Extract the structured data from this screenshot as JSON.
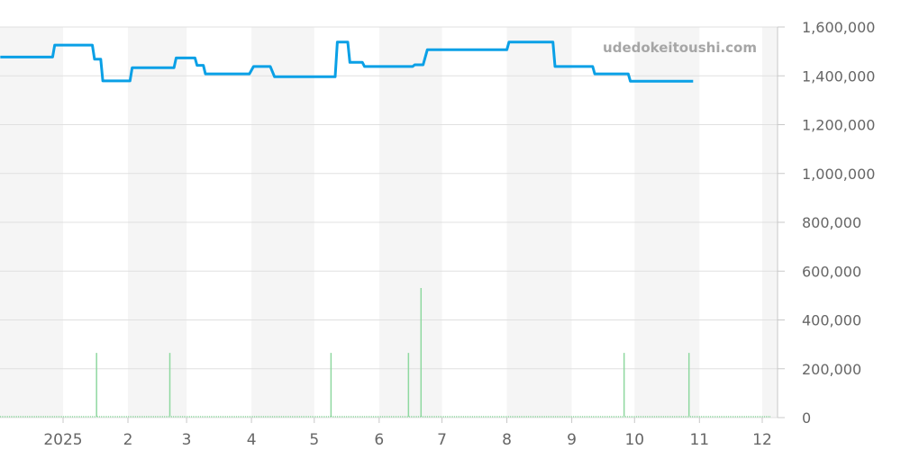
{
  "chart_data": {
    "type": "line",
    "title": "",
    "xlabel": "",
    "ylabel": "",
    "watermark": "udedokeitoushi.com",
    "xlim": [
      "2024-12-02",
      "2025-12-08"
    ],
    "ylim": [
      0,
      1600000
    ],
    "grid": true,
    "yaxis_position": "right",
    "month_bands": "alternating shaded months",
    "x_ticks": [
      {
        "date": "2025-01-01",
        "label": "2025"
      },
      {
        "date": "2025-02-01",
        "label": "2"
      },
      {
        "date": "2025-03-01",
        "label": "3"
      },
      {
        "date": "2025-04-01",
        "label": "4"
      },
      {
        "date": "2025-05-01",
        "label": "5"
      },
      {
        "date": "2025-06-01",
        "label": "6"
      },
      {
        "date": "2025-07-01",
        "label": "7"
      },
      {
        "date": "2025-08-01",
        "label": "8"
      },
      {
        "date": "2025-09-01",
        "label": "9"
      },
      {
        "date": "2025-10-01",
        "label": "10"
      },
      {
        "date": "2025-11-01",
        "label": "11"
      },
      {
        "date": "2025-12-01",
        "label": "12"
      }
    ],
    "y_ticks": [
      {
        "value": 0,
        "label": "0"
      },
      {
        "value": 200000,
        "label": "200,000"
      },
      {
        "value": 400000,
        "label": "400,000"
      },
      {
        "value": 600000,
        "label": "600,000"
      },
      {
        "value": 800000,
        "label": "800,000"
      },
      {
        "value": 1000000,
        "label": "1,000,000"
      },
      {
        "value": 1200000,
        "label": "1,200,000"
      },
      {
        "value": 1400000,
        "label": "1,400,000"
      },
      {
        "value": 1600000,
        "label": "1,600,000"
      }
    ],
    "colors": {
      "price_line": "#0aa0e6",
      "bars": "#8fd8a0",
      "band": "#f5f5f5",
      "grid": "#e0e0e0",
      "axis": "#c8c8c8"
    },
    "series": [
      {
        "type": "line",
        "points": [
          [
            "2024-12-02",
            1477000
          ],
          [
            "2024-12-27",
            1477000
          ],
          [
            "2024-12-28",
            1526000
          ],
          [
            "2025-01-15",
            1526000
          ],
          [
            "2025-01-16",
            1468000
          ],
          [
            "2025-01-19",
            1468000
          ],
          [
            "2025-01-20",
            1379000
          ],
          [
            "2025-02-02",
            1379000
          ],
          [
            "2025-02-03",
            1433000
          ],
          [
            "2025-02-23",
            1433000
          ],
          [
            "2025-02-24",
            1473000
          ],
          [
            "2025-03-05",
            1473000
          ],
          [
            "2025-03-06",
            1443000
          ],
          [
            "2025-03-09",
            1443000
          ],
          [
            "2025-03-10",
            1408000
          ],
          [
            "2025-03-31",
            1408000
          ],
          [
            "2025-04-02",
            1438000
          ],
          [
            "2025-04-10",
            1438000
          ],
          [
            "2025-04-12",
            1396000
          ],
          [
            "2025-05-11",
            1396000
          ],
          [
            "2025-05-12",
            1538000
          ],
          [
            "2025-05-17",
            1538000
          ],
          [
            "2025-05-18",
            1455000
          ],
          [
            "2025-05-24",
            1455000
          ],
          [
            "2025-05-25",
            1438000
          ],
          [
            "2025-06-17",
            1438000
          ],
          [
            "2025-06-18",
            1445000
          ],
          [
            "2025-06-22",
            1445000
          ],
          [
            "2025-06-24",
            1507000
          ],
          [
            "2025-08-01",
            1507000
          ],
          [
            "2025-08-02",
            1538000
          ],
          [
            "2025-08-23",
            1538000
          ],
          [
            "2025-08-24",
            1438000
          ],
          [
            "2025-09-11",
            1438000
          ],
          [
            "2025-09-12",
            1408000
          ],
          [
            "2025-09-28",
            1408000
          ],
          [
            "2025-09-29",
            1378000
          ],
          [
            "2025-10-29",
            1378000
          ]
        ]
      },
      {
        "type": "bar",
        "points": [
          [
            "2025-01-17",
            265000
          ],
          [
            "2025-02-21",
            265000
          ],
          [
            "2025-05-09",
            265000
          ],
          [
            "2025-06-15",
            265000
          ],
          [
            "2025-06-21",
            531000
          ],
          [
            "2025-09-26",
            265000
          ],
          [
            "2025-10-27",
            265000
          ]
        ]
      }
    ]
  }
}
